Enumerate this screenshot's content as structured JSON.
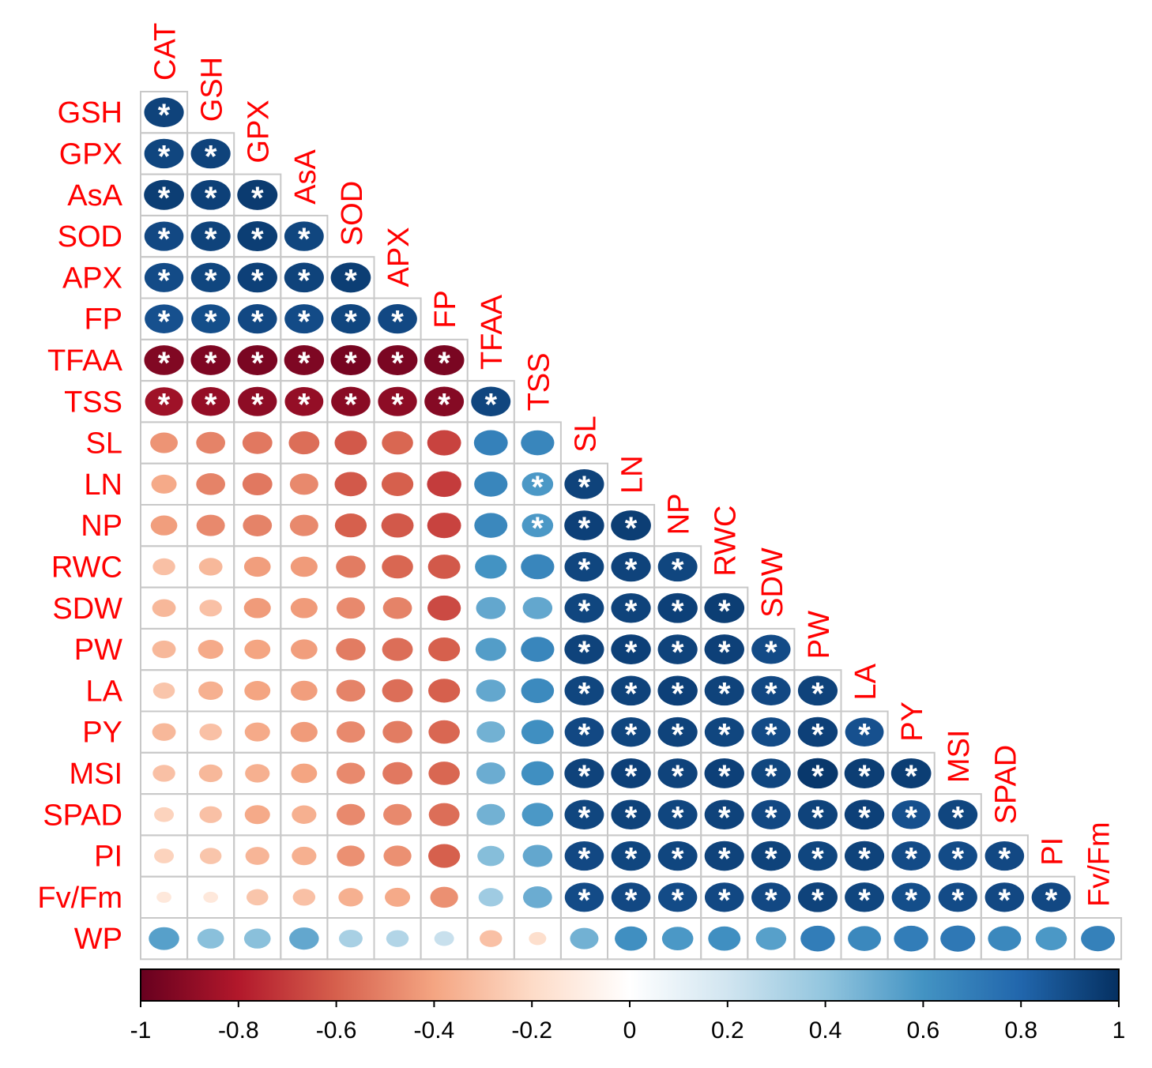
{
  "chart_data": {
    "type": "heatmap",
    "subtype": "correlation-ellipse-lower-triangle",
    "columns": [
      "CAT",
      "GSH",
      "GPX",
      "AsA",
      "SOD",
      "APX",
      "FP",
      "TFAA",
      "TSS",
      "SL",
      "LN",
      "NP",
      "RWC",
      "SDW",
      "PW",
      "LA",
      "PY",
      "MSI",
      "SPAD",
      "PI",
      "Fv/Fm"
    ],
    "rows": [
      "GSH",
      "GPX",
      "AsA",
      "SOD",
      "APX",
      "FP",
      "TFAA",
      "TSS",
      "SL",
      "LN",
      "NP",
      "RWC",
      "SDW",
      "PW",
      "LA",
      "PY",
      "MSI",
      "SPAD",
      "PI",
      "Fv/Fm",
      "WP"
    ],
    "values": [
      [
        0.93
      ],
      [
        0.92,
        0.93
      ],
      [
        0.95,
        0.94,
        0.96
      ],
      [
        0.91,
        0.93,
        0.95,
        0.92
      ],
      [
        0.9,
        0.92,
        0.94,
        0.93,
        0.95
      ],
      [
        0.88,
        0.89,
        0.91,
        0.9,
        0.92,
        0.91
      ],
      [
        -0.93,
        -0.94,
        -0.95,
        -0.94,
        -0.96,
        -0.95,
        -0.95
      ],
      [
        -0.85,
        -0.88,
        -0.9,
        -0.88,
        -0.91,
        -0.9,
        -0.92,
        0.92
      ],
      [
        -0.45,
        -0.5,
        -0.53,
        -0.56,
        -0.62,
        -0.58,
        -0.68,
        0.68,
        0.66
      ],
      [
        -0.38,
        -0.5,
        -0.53,
        -0.48,
        -0.62,
        -0.6,
        -0.7,
        0.66,
        0.58,
        0.93
      ],
      [
        -0.42,
        -0.48,
        -0.5,
        -0.48,
        -0.6,
        -0.62,
        -0.68,
        0.65,
        0.58,
        0.94,
        0.95
      ],
      [
        -0.3,
        -0.33,
        -0.42,
        -0.43,
        -0.52,
        -0.58,
        -0.62,
        0.6,
        0.66,
        0.92,
        0.93,
        0.92
      ],
      [
        -0.33,
        -0.3,
        -0.43,
        -0.43,
        -0.48,
        -0.5,
        -0.66,
        0.52,
        0.52,
        0.92,
        0.93,
        0.94,
        0.95
      ],
      [
        -0.33,
        -0.38,
        -0.4,
        -0.42,
        -0.52,
        -0.56,
        -0.6,
        0.56,
        0.66,
        0.93,
        0.94,
        0.93,
        0.94,
        0.9
      ],
      [
        -0.28,
        -0.36,
        -0.4,
        -0.42,
        -0.5,
        -0.56,
        -0.6,
        0.52,
        0.64,
        0.92,
        0.93,
        0.94,
        0.93,
        0.91,
        0.93
      ],
      [
        -0.33,
        -0.3,
        -0.38,
        -0.43,
        -0.48,
        -0.52,
        -0.58,
        0.48,
        0.62,
        0.91,
        0.92,
        0.93,
        0.92,
        0.9,
        0.94,
        0.88
      ],
      [
        -0.3,
        -0.33,
        -0.36,
        -0.4,
        -0.48,
        -0.53,
        -0.58,
        0.5,
        0.62,
        0.93,
        0.94,
        0.93,
        0.94,
        0.92,
        0.97,
        0.95,
        0.95
      ],
      [
        -0.23,
        -0.3,
        -0.38,
        -0.36,
        -0.48,
        -0.48,
        -0.56,
        0.48,
        0.58,
        0.92,
        0.93,
        0.92,
        0.93,
        0.91,
        0.93,
        0.94,
        0.88,
        0.92
      ],
      [
        -0.23,
        -0.28,
        -0.34,
        -0.36,
        -0.46,
        -0.46,
        -0.6,
        0.43,
        0.52,
        0.91,
        0.92,
        0.92,
        0.93,
        0.93,
        0.92,
        0.93,
        0.9,
        0.9,
        0.91
      ],
      [
        -0.13,
        -0.13,
        -0.28,
        -0.3,
        -0.36,
        -0.38,
        -0.46,
        0.36,
        0.5,
        0.9,
        0.91,
        0.9,
        0.91,
        0.91,
        0.93,
        0.92,
        0.89,
        0.9,
        0.91,
        0.91
      ],
      [
        0.55,
        0.42,
        0.42,
        0.52,
        0.33,
        0.3,
        0.23,
        -0.3,
        -0.18,
        0.48,
        0.62,
        0.58,
        0.62,
        0.55,
        0.7,
        0.65,
        0.7,
        0.72,
        0.65,
        0.58,
        0.68
      ]
    ],
    "significant": [
      [
        1
      ],
      [
        1,
        1
      ],
      [
        1,
        1,
        1
      ],
      [
        1,
        1,
        1,
        1
      ],
      [
        1,
        1,
        1,
        1,
        1
      ],
      [
        1,
        1,
        1,
        1,
        1,
        1
      ],
      [
        1,
        1,
        1,
        1,
        1,
        1,
        1
      ],
      [
        1,
        1,
        1,
        1,
        1,
        1,
        1,
        1
      ],
      [
        0,
        0,
        0,
        0,
        0,
        0,
        0,
        0,
        0
      ],
      [
        0,
        0,
        0,
        0,
        0,
        0,
        0,
        0,
        1,
        1
      ],
      [
        0,
        0,
        0,
        0,
        0,
        0,
        0,
        0,
        1,
        1,
        1
      ],
      [
        0,
        0,
        0,
        0,
        0,
        0,
        0,
        0,
        0,
        1,
        1,
        1
      ],
      [
        0,
        0,
        0,
        0,
        0,
        0,
        0,
        0,
        0,
        1,
        1,
        1,
        1
      ],
      [
        0,
        0,
        0,
        0,
        0,
        0,
        0,
        0,
        0,
        1,
        1,
        1,
        1,
        1
      ],
      [
        0,
        0,
        0,
        0,
        0,
        0,
        0,
        0,
        0,
        1,
        1,
        1,
        1,
        1,
        1
      ],
      [
        0,
        0,
        0,
        0,
        0,
        0,
        0,
        0,
        0,
        1,
        1,
        1,
        1,
        1,
        1,
        1
      ],
      [
        0,
        0,
        0,
        0,
        0,
        0,
        0,
        0,
        0,
        1,
        1,
        1,
        1,
        1,
        1,
        1,
        1
      ],
      [
        0,
        0,
        0,
        0,
        0,
        0,
        0,
        0,
        0,
        1,
        1,
        1,
        1,
        1,
        1,
        1,
        1,
        1
      ],
      [
        0,
        0,
        0,
        0,
        0,
        0,
        0,
        0,
        0,
        1,
        1,
        1,
        1,
        1,
        1,
        1,
        1,
        1,
        1
      ],
      [
        0,
        0,
        0,
        0,
        0,
        0,
        0,
        0,
        0,
        1,
        1,
        1,
        1,
        1,
        1,
        1,
        1,
        1,
        1,
        1
      ],
      [
        0,
        0,
        0,
        0,
        0,
        0,
        0,
        0,
        0,
        0,
        0,
        0,
        0,
        0,
        0,
        0,
        0,
        0,
        0,
        0,
        0
      ]
    ],
    "significance_marker": "*",
    "colorbar": {
      "range": [
        -1,
        1
      ],
      "ticks": [
        "-1",
        "-0.8",
        "-0.6",
        "-0.4",
        "-0.2",
        "0",
        "0.2",
        "0.4",
        "0.6",
        "0.8",
        "1"
      ],
      "tick_values": [
        -1,
        -0.8,
        -0.6,
        -0.4,
        -0.2,
        0,
        0.2,
        0.4,
        0.6,
        0.8,
        1
      ],
      "colors": [
        "#67001f",
        "#b2182b",
        "#d6604d",
        "#f4a582",
        "#fddbc7",
        "#ffffff",
        "#d1e5f0",
        "#92c5de",
        "#4393c3",
        "#2166ac",
        "#053061"
      ]
    },
    "title": "",
    "xlabel": "",
    "ylabel": ""
  }
}
